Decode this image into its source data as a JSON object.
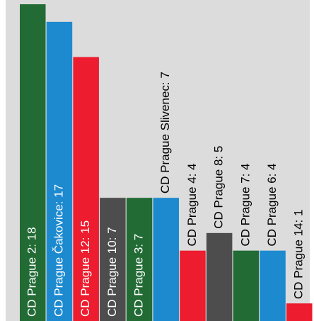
{
  "chart_data": {
    "type": "bar",
    "title": "",
    "xlabel": "",
    "ylabel": "",
    "ylim": [
      0,
      18.8
    ],
    "grid": false,
    "legend": "none",
    "background": "#dcdcdc",
    "label_color_dark_bar": "#ffffff",
    "label_color_outside": "#000000",
    "categories": [
      "CD Prague 2",
      "CD Prague Čakovice",
      "CD Prague 12",
      "CD Prague 10",
      "CD Prague 3",
      "CD Prague Slivenec",
      "CD Prague 4",
      "CD Prague 8",
      "CD Prague 7",
      "CD Prague 6",
      "CD Prague 14"
    ],
    "values": [
      18,
      17,
      15,
      7,
      7,
      7,
      4,
      5,
      4,
      4,
      1
    ],
    "labels": [
      "CD Prague 2: 18",
      "CD Prague Čakovice: 17",
      "CD Prague 12: 15",
      "CD Prague 10: 7",
      "CD Prague 3: 7",
      "CD Prague Slivenec: 7",
      "CD Prague 4: 4",
      "CD Prague 8: 5",
      "CD Prague 7: 4",
      "CD Prague 6: 4",
      "CD Prague 14: 1"
    ],
    "colors": [
      "#226b35",
      "#1d8ad0",
      "#ed1c2e",
      "#4d4d4d",
      "#226b35",
      "#1d8ad0",
      "#ed1c2e",
      "#4d4d4d",
      "#226b35",
      "#1d8ad0",
      "#ed1c2e"
    ]
  }
}
